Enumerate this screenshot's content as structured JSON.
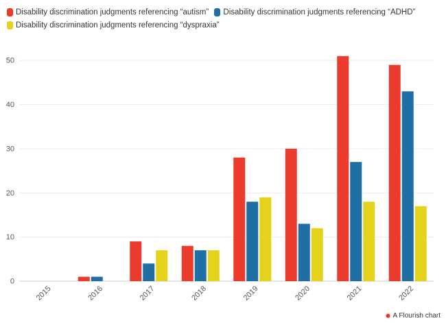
{
  "chart_data": {
    "type": "bar",
    "title": "",
    "xlabel": "",
    "ylabel": "",
    "ylim": [
      0,
      55
    ],
    "yticks": [
      0,
      10,
      20,
      30,
      40,
      50
    ],
    "categories": [
      "2015",
      "2016",
      "2017",
      "2018",
      "2019",
      "2020",
      "2021",
      "2022"
    ],
    "series": [
      {
        "name": "Disability discrimination judgments referencing “autism”",
        "color": "#eb3b2c",
        "values": [
          0,
          1,
          9,
          8,
          28,
          30,
          51,
          49
        ]
      },
      {
        "name": "Disability discrimination judgments referencing “ADHD”",
        "color": "#1f6fa5",
        "values": [
          0,
          1,
          4,
          7,
          18,
          13,
          27,
          43
        ]
      },
      {
        "name": "Disability discrimination judgments referencing “dyspraxia”",
        "color": "#e5d31b",
        "values": [
          0,
          0,
          7,
          7,
          19,
          12,
          18,
          17
        ]
      }
    ],
    "legend_position": "top-left",
    "grid": true
  },
  "footer": {
    "label": "A Flourish chart"
  }
}
